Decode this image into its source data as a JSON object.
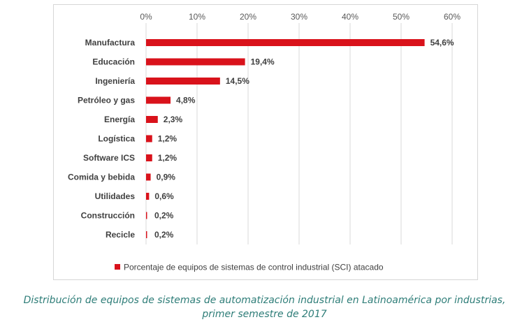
{
  "chart_data": {
    "type": "bar",
    "orientation": "horizontal",
    "categories": [
      "Manufactura",
      "Educación",
      "Ingeniería",
      "Petróleo y gas",
      "Energía",
      "Logística",
      "Software ICS",
      "Comida y bebida",
      "Utilidades",
      "Construcción",
      "Recicle"
    ],
    "series": [
      {
        "name": "Porcentaje de equipos de sistemas de control industrial (SCI) atacado",
        "values": [
          54.6,
          19.4,
          14.5,
          4.8,
          2.3,
          1.2,
          1.2,
          0.9,
          0.6,
          0.2,
          0.2
        ],
        "labels": [
          "54,6%",
          "19,4%",
          "14,5%",
          "4,8%",
          "2,3%",
          "1,2%",
          "1,2%",
          "0,9%",
          "0,6%",
          "0,2%",
          "0,2%"
        ],
        "color": "#d9121b"
      }
    ],
    "xlim": [
      0,
      60
    ],
    "xticks": [
      0,
      10,
      20,
      30,
      40,
      50,
      60
    ],
    "xtick_labels": [
      "0%",
      "10%",
      "20%",
      "30%",
      "40%",
      "50%",
      "60%"
    ],
    "x_axis_position": "top",
    "grid": true,
    "legend": "bottom",
    "title": "",
    "xlabel": "",
    "ylabel": ""
  },
  "caption": {
    "line1": "Distribución de equipos de sistemas de automatización industrial en Latinoamérica por industrias,",
    "line2": "primer semestre de 2017"
  }
}
